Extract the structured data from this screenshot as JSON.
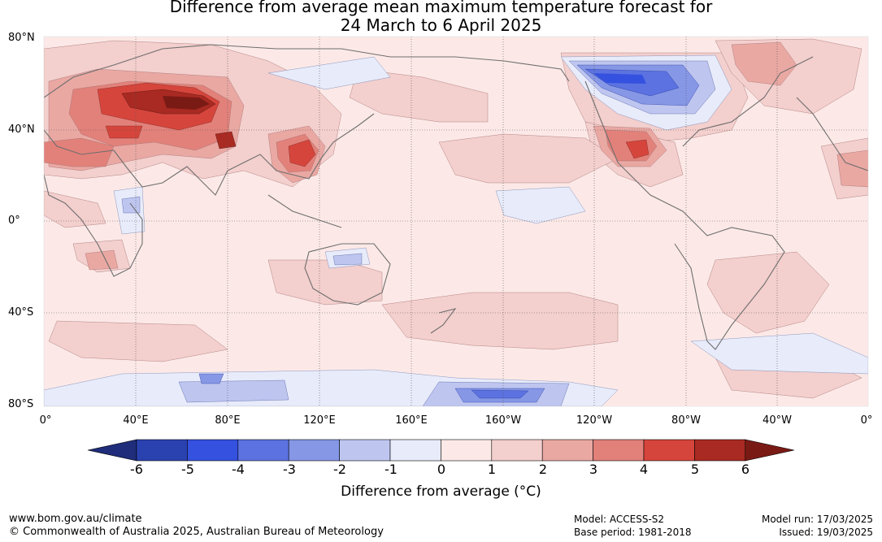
{
  "title_line1": "Difference from average mean maximum temperature forecast for",
  "title_line2": "24 March to 6 April 2025",
  "lat_labels": [
    "80°N",
    "40°N",
    "0°",
    "40°S",
    "80°S"
  ],
  "lon_labels": [
    "0°",
    "40°E",
    "80°E",
    "120°E",
    "160°E",
    "160°W",
    "120°W",
    "80°W",
    "40°W",
    "0°"
  ],
  "colorbar": {
    "ticks": [
      "-6",
      "-5",
      "-4",
      "-3",
      "-2",
      "-1",
      "0",
      "1",
      "2",
      "3",
      "4",
      "5",
      "6"
    ],
    "colors": [
      "#1f2d7a",
      "#2a42b0",
      "#3451df",
      "#5b72e0",
      "#8697e6",
      "#bec6f0",
      "#e8ebfa",
      "#fce9e7",
      "#f3cfcd",
      "#eaa8a3",
      "#e2817a",
      "#d6453c",
      "#a92a22",
      "#7a1a15"
    ],
    "title": "Difference from average (°C)"
  },
  "footer": {
    "url": "www.bom.gov.au/climate",
    "copyright": "© Commonwealth of Australia 2025, Australian Bureau of Meteorology",
    "model": "Model: ACCESS-S2",
    "base_period": "Base period: 1981-2018",
    "model_run": "Model run: 17/03/2025",
    "issued": "Issued: 19/03/2025"
  }
}
